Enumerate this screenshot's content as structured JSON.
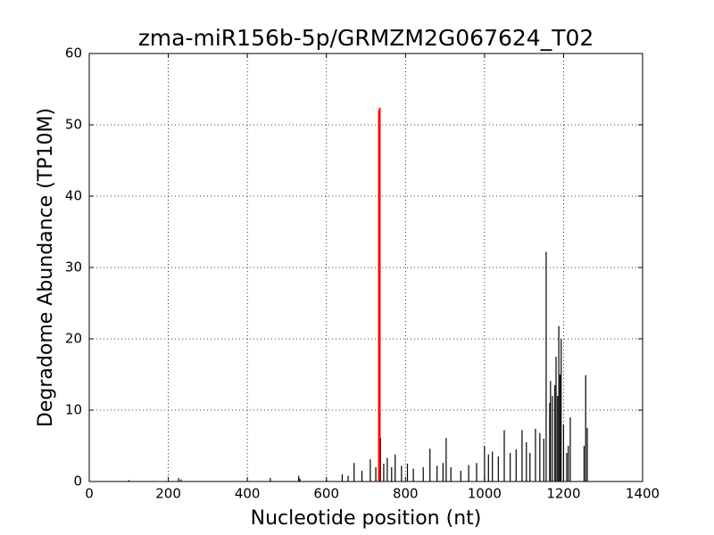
{
  "chart_data": {
    "type": "stem",
    "title": "zma-miR156b-5p/GRMZM2G067624_T02",
    "x_label": "Nucleotide position (nt)",
    "y_label": "Degradome Abundance (TP10M)",
    "xlim": [
      0,
      1400
    ],
    "xticks": [
      0,
      200,
      400,
      600,
      800,
      1000,
      1200,
      1400
    ],
    "ylim": [
      0,
      60
    ],
    "yticks": [
      0,
      10,
      20,
      30,
      40,
      50,
      60
    ],
    "grid": true,
    "series": [
      {
        "color": "#000000",
        "x": [
          100,
          226,
          232,
          458,
          530,
          533,
          600,
          640,
          655,
          670,
          690,
          711,
          725,
          737,
          745,
          754,
          765,
          774,
          790,
          805,
          820,
          845,
          862,
          880,
          895,
          903,
          915,
          940,
          960,
          980,
          1000,
          1010,
          1020,
          1035,
          1050,
          1065,
          1080,
          1095,
          1106,
          1115,
          1129,
          1140,
          1150,
          1156,
          1165,
          1167,
          1172,
          1178,
          1181,
          1185,
          1188,
          1191,
          1194,
          1200,
          1208,
          1212,
          1217,
          1252,
          1256,
          1260
        ],
        "values": [
          0.2,
          0.5,
          0.3,
          0.5,
          0.8,
          0.4,
          0.3,
          1,
          0.8,
          2.6,
          1.5,
          3.1,
          2,
          6.1,
          2.5,
          3.3,
          2,
          3.8,
          2.2,
          2.5,
          1.8,
          2,
          4.6,
          2.2,
          2.6,
          6.1,
          2,
          1.5,
          2.3,
          2.6,
          5,
          3.8,
          4.2,
          3.5,
          7.2,
          4,
          4.5,
          7.2,
          5.5,
          4,
          7.4,
          6.8,
          6,
          32.2,
          11,
          14.1,
          12,
          13.5,
          17.5,
          12,
          21.8,
          15,
          20,
          8,
          4,
          5,
          9,
          5,
          14.9,
          7.5
        ]
      },
      {
        "color": "#ff0000",
        "x": [
          733,
          735
        ],
        "values": [
          52,
          52.4
        ]
      }
    ]
  }
}
